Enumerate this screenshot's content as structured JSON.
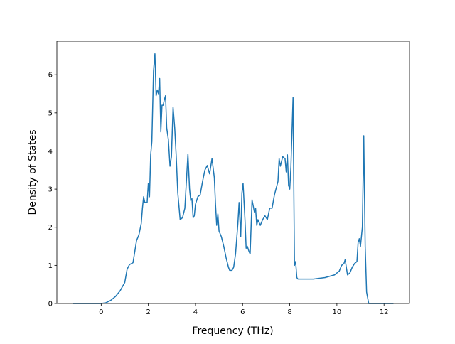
{
  "chart_data": {
    "type": "line",
    "xlabel": "Frequency (THz)",
    "ylabel": "Density of States",
    "xlim": [
      -1.88,
      13.08
    ],
    "ylim": [
      0,
      6.88
    ],
    "xticks": [
      0,
      2,
      4,
      6,
      8,
      10,
      12
    ],
    "yticks": [
      0,
      1,
      2,
      3,
      4,
      5,
      6
    ],
    "series": [
      {
        "name": "DOS",
        "color": "#1f77b4",
        "x": [
          -1.2,
          -0.5,
          0,
          0.2,
          0.4,
          0.6,
          0.8,
          1.0,
          1.1,
          1.2,
          1.35,
          1.5,
          1.6,
          1.7,
          1.75,
          1.8,
          1.85,
          1.95,
          2.0,
          2.05,
          2.1,
          2.15,
          2.22,
          2.28,
          2.33,
          2.38,
          2.43,
          2.48,
          2.53,
          2.58,
          2.63,
          2.68,
          2.73,
          2.78,
          2.85,
          2.92,
          2.98,
          3.05,
          3.12,
          3.18,
          3.25,
          3.35,
          3.45,
          3.55,
          3.68,
          3.75,
          3.8,
          3.85,
          3.9,
          3.95,
          4.0,
          4.1,
          4.2,
          4.3,
          4.4,
          4.5,
          4.6,
          4.7,
          4.8,
          4.85,
          4.9,
          4.95,
          5.0,
          5.1,
          5.2,
          5.3,
          5.4,
          5.45,
          5.55,
          5.62,
          5.7,
          5.8,
          5.85,
          5.92,
          5.97,
          6.02,
          6.1,
          6.15,
          6.2,
          6.28,
          6.32,
          6.4,
          6.5,
          6.55,
          6.6,
          6.65,
          6.75,
          6.85,
          6.95,
          7.05,
          7.15,
          7.25,
          7.35,
          7.5,
          7.55,
          7.6,
          7.7,
          7.8,
          7.85,
          7.9,
          7.95,
          8.0,
          8.05,
          8.14,
          8.2,
          8.25,
          8.3,
          8.35,
          8.45,
          9.0,
          9.5,
          9.9,
          10.0,
          10.1,
          10.2,
          10.3,
          10.35,
          10.45,
          10.55,
          10.65,
          10.75,
          10.85,
          10.9,
          10.95,
          11.0,
          11.08,
          11.14,
          11.2,
          11.26,
          11.35,
          12.4
        ],
        "values": [
          0,
          0,
          0,
          0.02,
          0.08,
          0.18,
          0.33,
          0.55,
          0.9,
          1.02,
          1.07,
          1.65,
          1.8,
          2.1,
          2.5,
          2.8,
          2.65,
          2.65,
          3.15,
          2.8,
          3.9,
          4.25,
          6.1,
          6.55,
          5.45,
          5.6,
          5.5,
          5.9,
          4.5,
          5.2,
          5.2,
          5.35,
          5.45,
          4.6,
          4.3,
          3.6,
          3.85,
          5.15,
          4.6,
          3.9,
          2.9,
          2.2,
          2.25,
          2.5,
          3.92,
          3.0,
          2.7,
          2.75,
          2.25,
          2.3,
          2.6,
          2.8,
          2.85,
          3.2,
          3.5,
          3.62,
          3.4,
          3.8,
          3.3,
          2.6,
          2.05,
          2.35,
          1.9,
          1.75,
          1.5,
          1.2,
          0.95,
          0.87,
          0.87,
          0.95,
          1.3,
          2.1,
          2.65,
          1.75,
          2.9,
          3.15,
          2.2,
          1.45,
          1.5,
          1.35,
          1.3,
          2.72,
          2.4,
          2.5,
          2.05,
          2.2,
          2.05,
          2.2,
          2.3,
          2.2,
          2.5,
          2.5,
          2.85,
          3.2,
          3.8,
          3.6,
          3.85,
          3.8,
          3.45,
          3.9,
          3.1,
          3.0,
          3.6,
          5.4,
          1.0,
          1.1,
          0.68,
          0.64,
          0.64,
          0.64,
          0.68,
          0.75,
          0.8,
          0.85,
          1.0,
          1.05,
          1.15,
          0.75,
          0.8,
          0.95,
          1.05,
          1.1,
          1.6,
          1.7,
          1.5,
          2.0,
          4.4,
          1.5,
          0.3,
          0,
          0
        ]
      }
    ]
  }
}
